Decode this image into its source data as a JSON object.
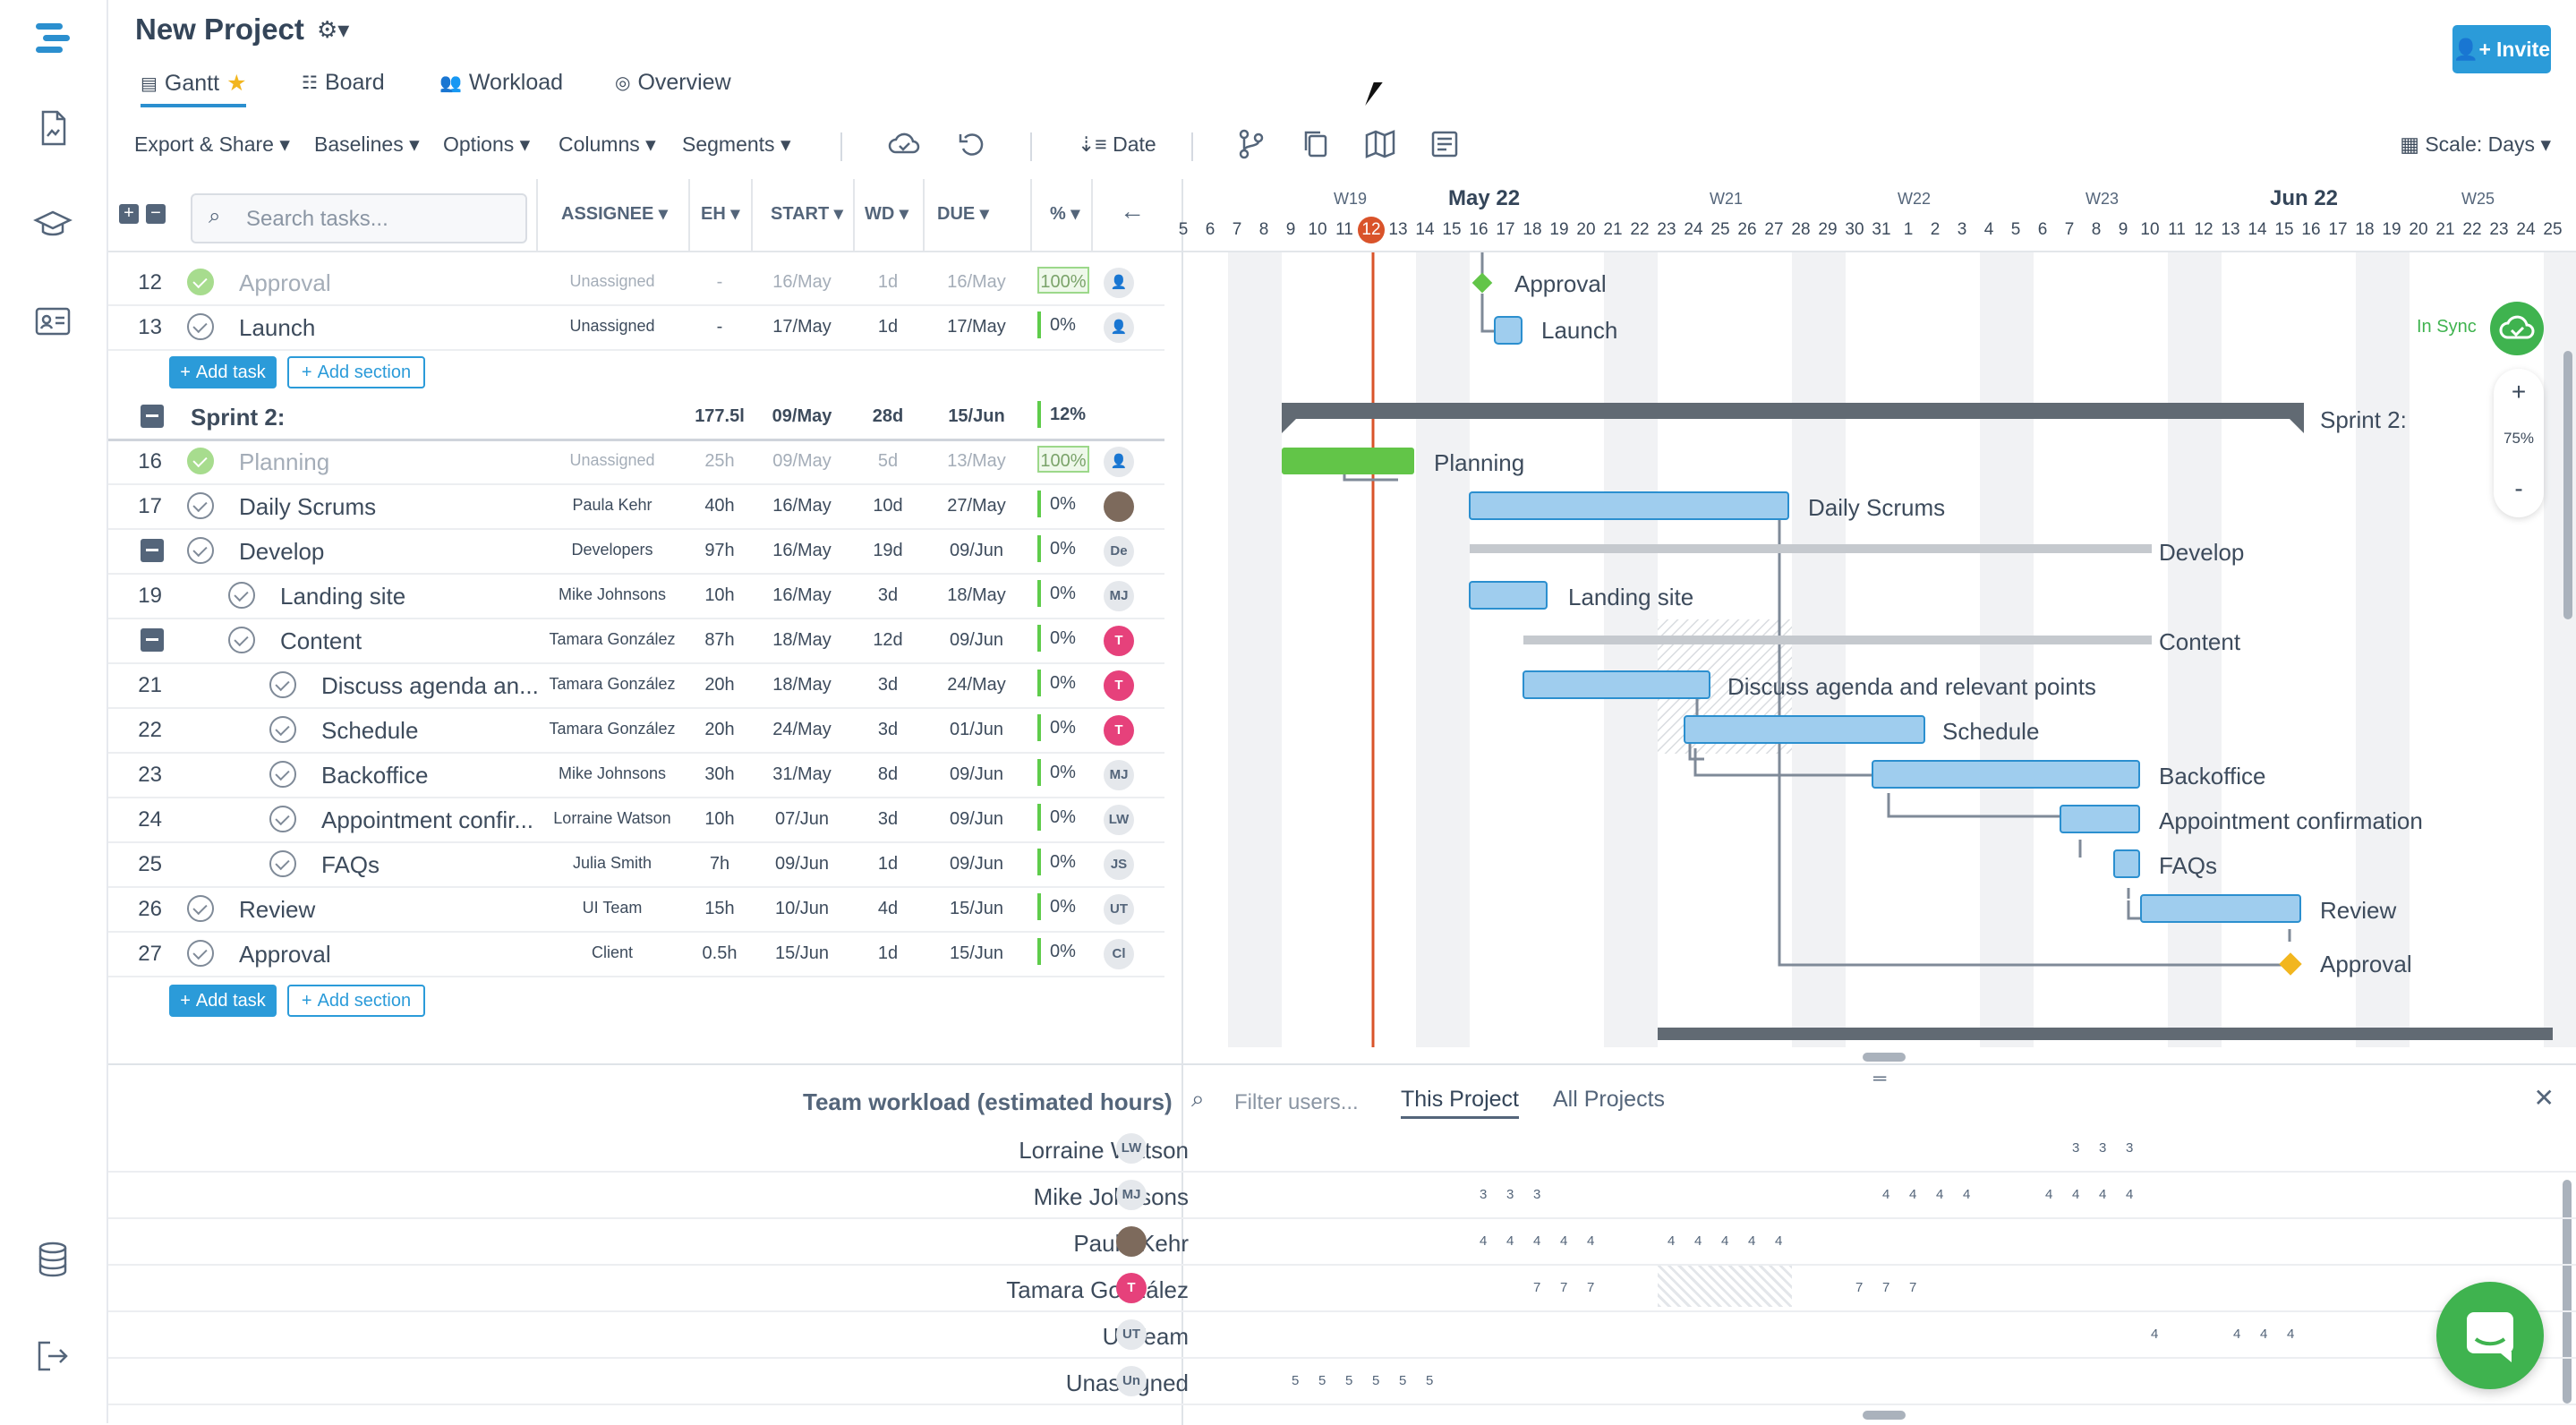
{
  "project": {
    "title": "New Project"
  },
  "tabs": [
    {
      "label": "Gantt"
    },
    {
      "label": "Board"
    },
    {
      "label": "Workload"
    },
    {
      "label": "Overview"
    }
  ],
  "invite_label": "Invite",
  "toolbar": {
    "export": "Export & Share",
    "baselines": "Baselines",
    "options": "Options",
    "columns": "Columns",
    "segments": "Segments",
    "sort": "Date",
    "scale": "Scale: Days"
  },
  "grid": {
    "search_placeholder": "Search tasks...",
    "columns": [
      "ASSIGNEE",
      "EH",
      "START",
      "WD",
      "DUE",
      "%"
    ]
  },
  "tasks": [
    {
      "num": "12",
      "name": "Approval",
      "assignee": "Unassigned",
      "eh": "-",
      "start": "16/May",
      "wd": "1d",
      "due": "16/May",
      "pct": "100%",
      "avatar": "",
      "done": true
    },
    {
      "num": "13",
      "name": "Launch",
      "assignee": "Unassigned",
      "eh": "-",
      "start": "17/May",
      "wd": "1d",
      "due": "17/May",
      "pct": "0%",
      "avatar": "",
      "done": false
    },
    {
      "num": "16",
      "name": "Planning",
      "assignee": "Unassigned",
      "eh": "25h",
      "start": "09/May",
      "wd": "5d",
      "due": "13/May",
      "pct": "100%",
      "avatar": "",
      "done": true
    },
    {
      "num": "17",
      "name": "Daily Scrums",
      "assignee": "Paula Kehr",
      "eh": "40h",
      "start": "16/May",
      "wd": "10d",
      "due": "27/May",
      "pct": "0%",
      "avatar": "",
      "done": false
    },
    {
      "num": "",
      "name": "Develop",
      "assignee": "Developers",
      "eh": "97h",
      "start": "16/May",
      "wd": "19d",
      "due": "09/Jun",
      "pct": "0%",
      "avatar": "De",
      "done": false
    },
    {
      "num": "19",
      "name": "Landing site",
      "assignee": "Mike Johnsons",
      "eh": "10h",
      "start": "16/May",
      "wd": "3d",
      "due": "18/May",
      "pct": "0%",
      "avatar": "MJ",
      "done": false
    },
    {
      "num": "",
      "name": "Content",
      "assignee": "Tamara González",
      "eh": "87h",
      "start": "18/May",
      "wd": "12d",
      "due": "09/Jun",
      "pct": "0%",
      "avatar": "T",
      "done": false
    },
    {
      "num": "21",
      "name": "Discuss agenda an...",
      "assignee": "Tamara González",
      "eh": "20h",
      "start": "18/May",
      "wd": "3d",
      "due": "24/May",
      "pct": "0%",
      "avatar": "T",
      "done": false
    },
    {
      "num": "22",
      "name": "Schedule",
      "assignee": "Tamara González",
      "eh": "20h",
      "start": "24/May",
      "wd": "3d",
      "due": "01/Jun",
      "pct": "0%",
      "avatar": "T",
      "done": false
    },
    {
      "num": "23",
      "name": "Backoffice",
      "assignee": "Mike Johnsons",
      "eh": "30h",
      "start": "31/May",
      "wd": "8d",
      "due": "09/Jun",
      "pct": "0%",
      "avatar": "MJ",
      "done": false
    },
    {
      "num": "24",
      "name": "Appointment confir...",
      "assignee": "Lorraine Watson",
      "eh": "10h",
      "start": "07/Jun",
      "wd": "3d",
      "due": "09/Jun",
      "pct": "0%",
      "avatar": "LW",
      "done": false
    },
    {
      "num": "25",
      "name": "FAQs",
      "assignee": "Julia Smith",
      "eh": "7h",
      "start": "09/Jun",
      "wd": "1d",
      "due": "09/Jun",
      "pct": "0%",
      "avatar": "JS",
      "done": false
    },
    {
      "num": "26",
      "name": "Review",
      "assignee": "UI Team",
      "eh": "15h",
      "start": "10/Jun",
      "wd": "4d",
      "due": "15/Jun",
      "pct": "0%",
      "avatar": "UT",
      "done": false
    },
    {
      "num": "27",
      "name": "Approval",
      "assignee": "Client",
      "eh": "0.5h",
      "start": "15/Jun",
      "wd": "1d",
      "due": "15/Jun",
      "pct": "0%",
      "avatar": "Cl",
      "done": false
    }
  ],
  "sprint": {
    "name": "Sprint 2:",
    "eh": "177.5l",
    "start": "09/May",
    "wd": "28d",
    "due": "15/Jun",
    "pct": "12%"
  },
  "buttons": {
    "add_task": "Add task",
    "add_section": "Add section"
  },
  "timeline": {
    "weeks": [
      "W19",
      "May 22",
      "W21",
      "W22",
      "W23",
      "Jun 22",
      "W25"
    ],
    "days": [
      "5",
      "6",
      "7",
      "8",
      "9",
      "10",
      "11",
      "12",
      "13",
      "14",
      "15",
      "16",
      "17",
      "18",
      "19",
      "20",
      "21",
      "22",
      "23",
      "24",
      "25",
      "26",
      "27",
      "28",
      "29",
      "30",
      "31",
      "1",
      "2",
      "3",
      "4",
      "5",
      "6",
      "7",
      "8",
      "9",
      "10",
      "11",
      "12",
      "13",
      "14",
      "15",
      "16",
      "17",
      "18",
      "19",
      "20",
      "21",
      "22",
      "23",
      "24",
      "25"
    ],
    "today": "12"
  },
  "bars": {
    "approval_top": "Approval",
    "launch": "Launch",
    "sprint": "Sprint 2:",
    "planning": "Planning",
    "daily": "Daily Scrums",
    "develop": "Develop",
    "landing": "Landing site",
    "content": "Content",
    "discuss": "Discuss agenda and relevant points",
    "schedule": "Schedule",
    "backoffice": "Backoffice",
    "appointment": "Appointment confirmation",
    "faqs": "FAQs",
    "review": "Review",
    "approval": "Approval"
  },
  "sync": {
    "label": "In Sync",
    "zoom": "75%",
    "plus": "+",
    "minus": "-"
  },
  "workload": {
    "title": "Team workload (estimated hours)",
    "filter_placeholder": "Filter users...",
    "tab_project": "This Project",
    "tab_all": "All Projects",
    "users": [
      {
        "name": "Lorraine Watson",
        "initials": "LW",
        "hours": [
          "3",
          "3",
          "3"
        ]
      },
      {
        "name": "Mike Johnsons",
        "initials": "MJ",
        "hours": [
          "3",
          "3",
          "3",
          "4",
          "4",
          "4",
          "4",
          "4",
          "4",
          "4",
          "4"
        ]
      },
      {
        "name": "Paula Kehr",
        "initials": "",
        "hours": [
          "4",
          "4",
          "4",
          "4",
          "4",
          "4",
          "4",
          "4",
          "4",
          "4"
        ]
      },
      {
        "name": "Tamara González",
        "initials": "T",
        "hours": [
          "7",
          "7",
          "7",
          "7",
          "7",
          "7"
        ]
      },
      {
        "name": "UI Team",
        "initials": "UT",
        "hours": [
          "4",
          "4",
          "4",
          "4"
        ]
      },
      {
        "name": "Unassigned",
        "initials": "Un",
        "hours": [
          "5",
          "5",
          "5",
          "5",
          "5",
          "5"
        ]
      }
    ]
  }
}
